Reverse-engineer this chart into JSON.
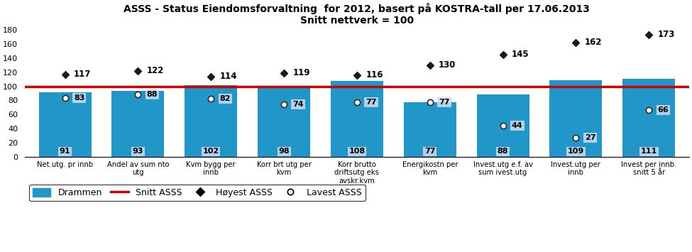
{
  "title_line1": "ASSS - Status Eiendomsforvaltning  for 2012, basert på KOSTRA-tall per 17.06.2013",
  "title_line2": "Snitt nettverk = 100",
  "categories": [
    "Net.utg. pr innb",
    "Andel av sum nto\nutg",
    "Kvm bygg per\ninnb",
    "Korr brt utg per\nkvm",
    "Korr brutto\ndriftsutg eks\navskr.kvm",
    "Energikostn per\nkvm",
    "Invest.utg e.f. av\nsum ivest.utg",
    "Invest.utg per\ninnb",
    "Invest per innb.\nsnitt 5 år"
  ],
  "drammen_values": [
    91,
    93,
    102,
    98,
    108,
    77,
    88,
    109,
    111
  ],
  "highest_values": [
    117,
    122,
    114,
    119,
    116,
    130,
    145,
    162,
    173
  ],
  "lowest_values": [
    83,
    88,
    82,
    74,
    77,
    77,
    44,
    27,
    66
  ],
  "snitt_line": 100,
  "bar_color": "#2196C8",
  "snitt_color": "#CC0000",
  "highest_color": "#1a1a1a",
  "label_bg_color": "#DDEEFF",
  "ylim": [
    0,
    180
  ],
  "yticks": [
    0,
    20,
    40,
    60,
    80,
    100,
    120,
    140,
    160,
    180
  ],
  "background_color": "#ffffff",
  "legend_labels": [
    "Drammen",
    "Snitt ASSS",
    "Høyest ASSS",
    "Lavest ASSS"
  ]
}
